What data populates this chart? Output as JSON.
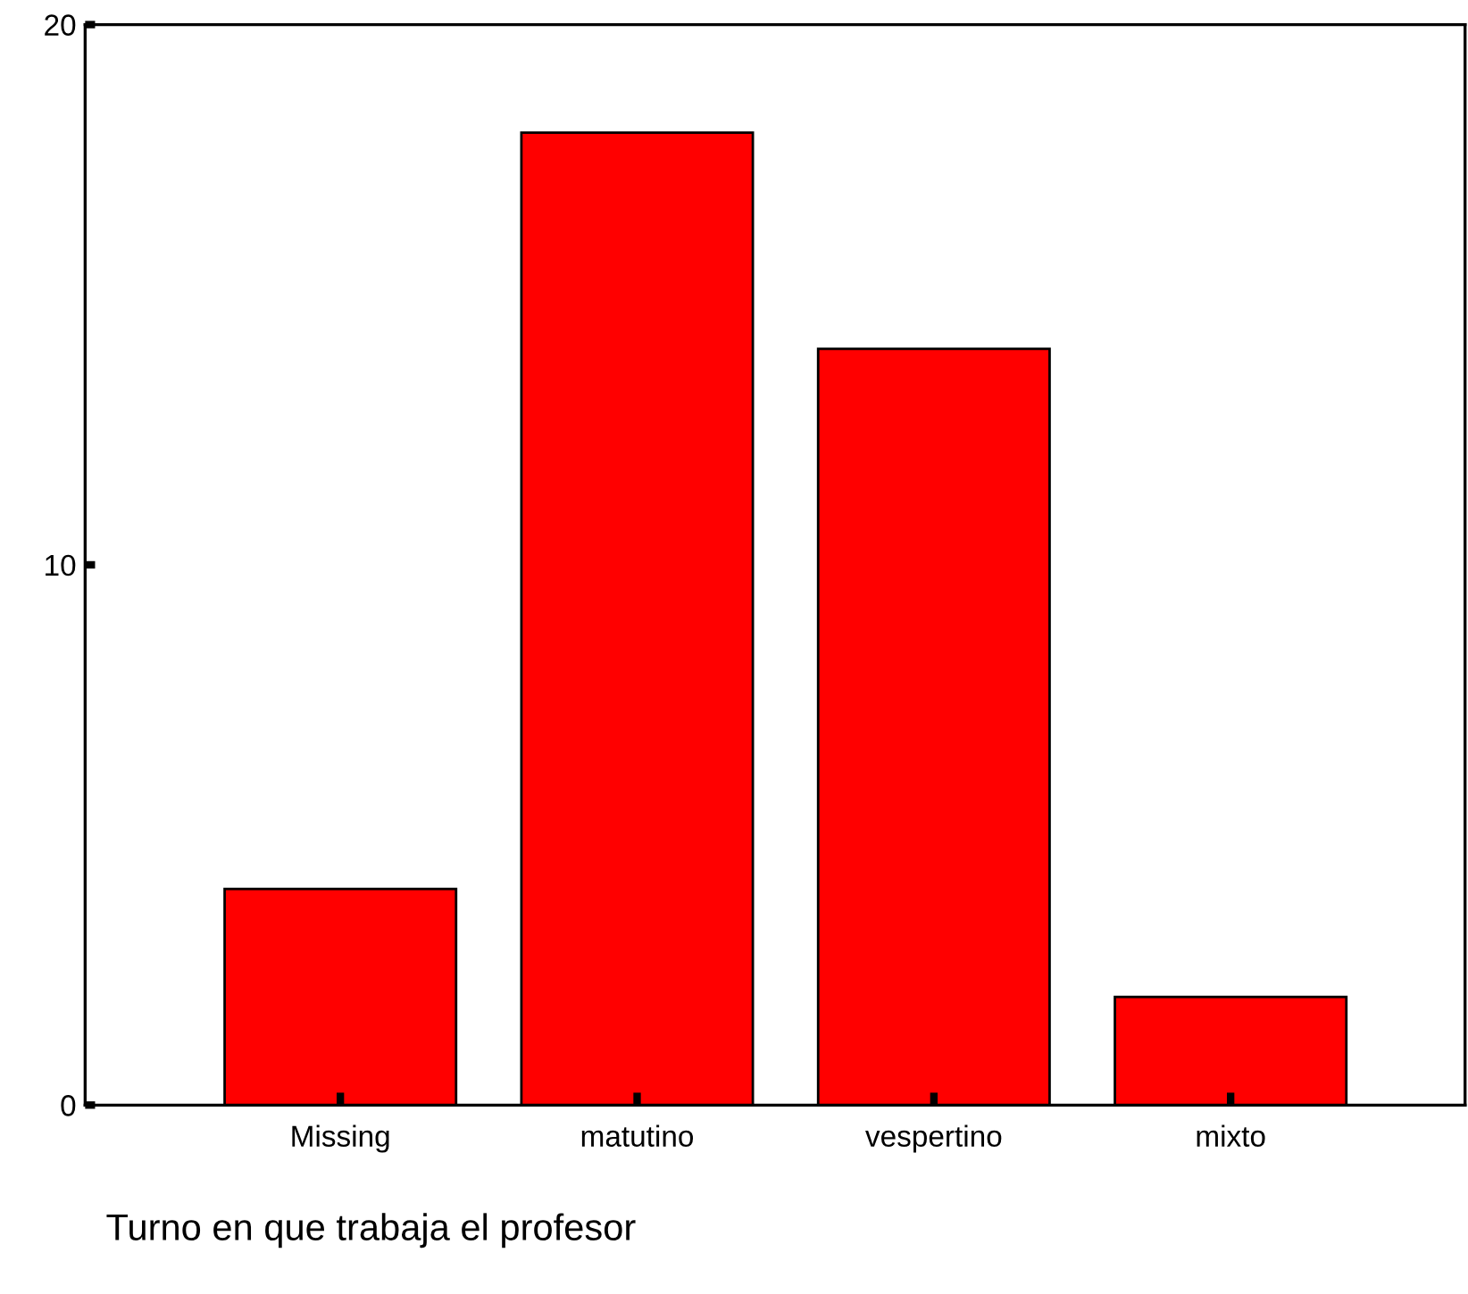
{
  "chart_data": {
    "type": "bar",
    "xlabel": "Turno en que trabaja el profesor",
    "categories": [
      "Missing",
      "matutino",
      "vespertino",
      "mixto"
    ],
    "values": [
      4,
      18,
      14,
      2
    ],
    "color": "#ff0000",
    "ylim": [
      0,
      20
    ],
    "yticks": [
      0,
      10,
      20
    ],
    "grid": false,
    "legend": false
  }
}
